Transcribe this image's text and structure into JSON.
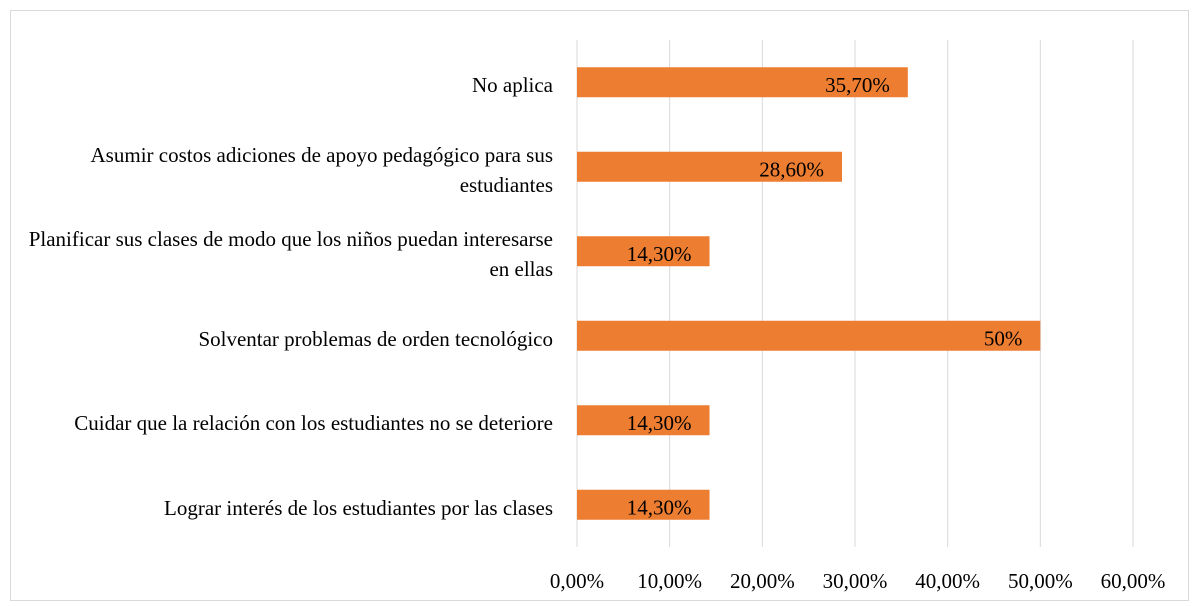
{
  "chart_data": {
    "type": "bar",
    "orientation": "horizontal",
    "categories": [
      "No aplica",
      "Asumir costos adiciones de apoyo pedagógico para sus estudiantes",
      "Planificar sus clases de modo que los niños puedan interesarse en ellas",
      "Solventar problemas de orden tecnológico",
      "Cuidar que la relación con los estudiantes no se deteriore",
      "Lograr interés de los estudiantes por las clases"
    ],
    "values": [
      35.7,
      28.6,
      14.3,
      50,
      14.3,
      14.3
    ],
    "value_labels": [
      "35,70%",
      "28,60%",
      "14,30%",
      "50%",
      "14,30%",
      "14,30%"
    ],
    "color": "#ed7d31",
    "xlim": [
      0,
      60
    ],
    "xticks": [
      {
        "value": 0,
        "label": "0,00%"
      },
      {
        "value": 10,
        "label": "10,00%"
      },
      {
        "value": 20,
        "label": "20,00%"
      },
      {
        "value": 30,
        "label": "30,00%"
      },
      {
        "value": 40,
        "label": "40,00%"
      },
      {
        "value": 50,
        "label": "50,00%"
      },
      {
        "value": 60,
        "label": "60,00%"
      }
    ],
    "grid": true
  }
}
